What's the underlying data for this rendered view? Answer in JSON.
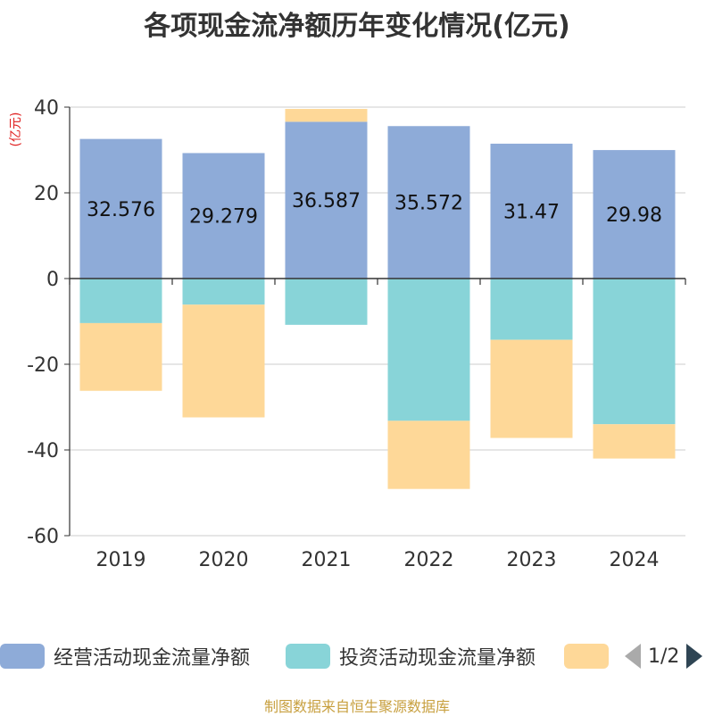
{
  "chart_data": {
    "type": "bar",
    "stacked": true,
    "title": "各项现金流净额历年变化情况(亿元)",
    "ylabel": "(亿元)",
    "categories": [
      "2019",
      "2020",
      "2021",
      "2022",
      "2023",
      "2024"
    ],
    "ylim": [
      -60,
      40
    ],
    "yticks": [
      40,
      20,
      0,
      -20,
      -40,
      -60
    ],
    "grid": true,
    "series": [
      {
        "name": "经营活动现金流量净额",
        "color": "#8eabd8",
        "values": [
          32.576,
          29.279,
          36.587,
          35.572,
          31.47,
          29.98
        ],
        "labels": [
          "32.576",
          "29.279",
          "36.587",
          "35.572",
          "31.47",
          "29.98"
        ]
      },
      {
        "name": "投资活动现金流量净额",
        "color": "#88d4d8",
        "values": [
          -10.4,
          -6.1,
          -10.8,
          -33.2,
          -14.3,
          -34.0
        ],
        "labels": []
      },
      {
        "color": "#fed898",
        "values": [
          -15.8,
          -26.3,
          3.0,
          -15.9,
          -22.9,
          -8.0
        ],
        "labels": []
      }
    ]
  },
  "legend": {
    "items": [
      {
        "label": "经营活动现金流量净额",
        "color": "#8eabd8"
      },
      {
        "label": "投资活动现金流量净额",
        "color": "#88d4d8"
      },
      {
        "label": "",
        "color": "#fed898"
      }
    ],
    "page": "1/2"
  },
  "source_text": "制图数据来自恒生聚源数据库"
}
